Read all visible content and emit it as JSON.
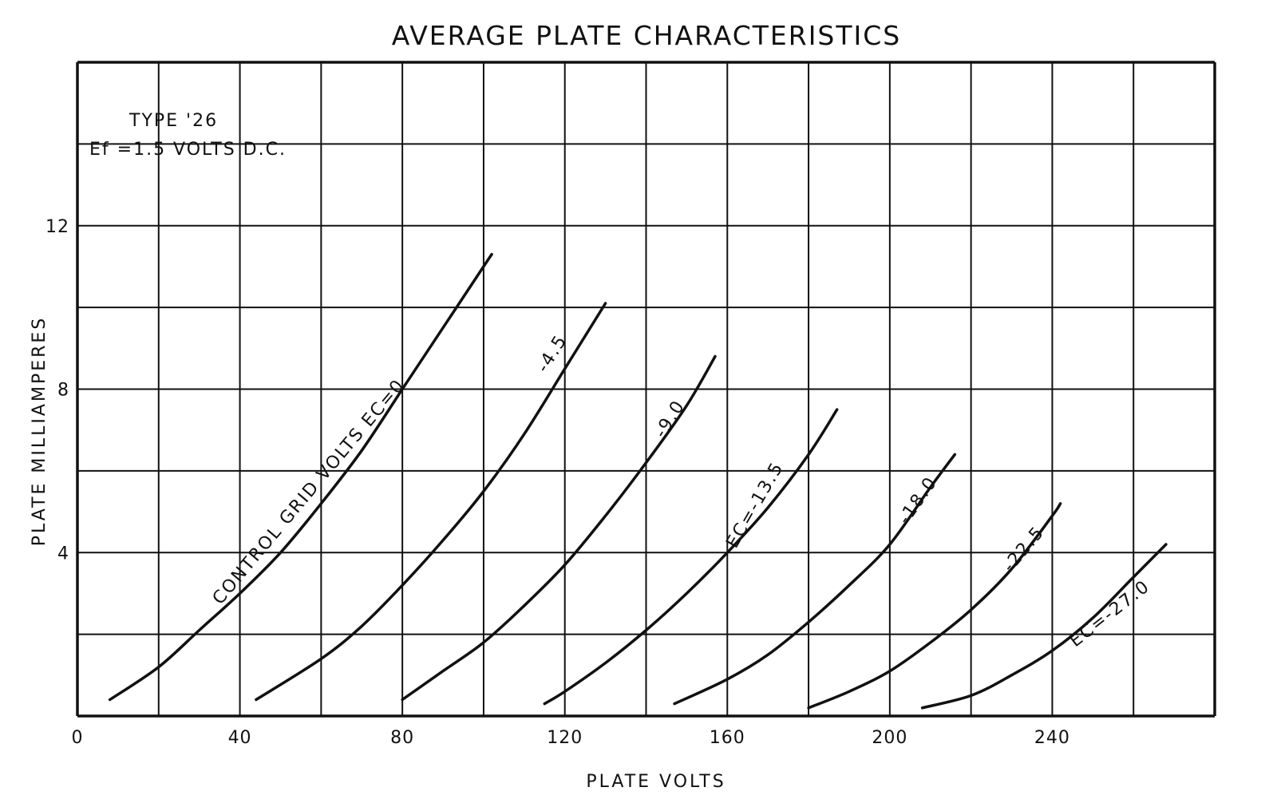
{
  "chart_data": {
    "type": "line",
    "title": "AVERAGE PLATE CHARACTERISTICS",
    "xlabel": "PLATE VOLTS",
    "ylabel": "PLATE MILLIAMPERES",
    "xlim": [
      0,
      280
    ],
    "ylim": [
      0,
      16
    ],
    "grid": true,
    "x_ticks": [
      {
        "value": 0,
        "label": "0"
      },
      {
        "value": 40,
        "label": "40"
      },
      {
        "value": 80,
        "label": "80"
      },
      {
        "value": 120,
        "label": "120"
      },
      {
        "value": 160,
        "label": "160"
      },
      {
        "value": 200,
        "label": "200"
      },
      {
        "value": 240,
        "label": "240"
      }
    ],
    "y_ticks": [
      {
        "value": 4,
        "label": "4"
      },
      {
        "value": 8,
        "label": "8"
      },
      {
        "value": 12,
        "label": "12"
      }
    ],
    "annotation_lines": [
      "TYPE '26",
      "Ef =1.5 VOLTS D.C."
    ],
    "series": [
      {
        "label": "CONTROL GRID VOLTS EC=0",
        "label_at": [
          58,
          5.4
        ],
        "label_angle": -50,
        "x": [
          8,
          20,
          30,
          40,
          50,
          60,
          70,
          80,
          90,
          100,
          102
        ],
        "y": [
          0.4,
          1.2,
          2.1,
          3.0,
          4.0,
          5.2,
          6.5,
          8.0,
          9.5,
          11.0,
          11.3
        ]
      },
      {
        "label": "-4.5",
        "label_at": [
          118,
          8.8
        ],
        "label_angle": -58,
        "x": [
          44,
          60,
          70,
          80,
          90,
          100,
          110,
          120,
          130
        ],
        "y": [
          0.4,
          1.4,
          2.2,
          3.2,
          4.3,
          5.5,
          6.9,
          8.5,
          10.1
        ]
      },
      {
        "label": "-9.0",
        "label_at": [
          147,
          7.2
        ],
        "label_angle": -58,
        "x": [
          80,
          90,
          100,
          110,
          120,
          130,
          140,
          150,
          157
        ],
        "y": [
          0.4,
          1.1,
          1.8,
          2.7,
          3.7,
          4.9,
          6.2,
          7.6,
          8.8
        ]
      },
      {
        "label": "EC=-13.5",
        "label_at": [
          168,
          5.1
        ],
        "label_angle": -60,
        "x": [
          115,
          120,
          130,
          140,
          150,
          160,
          170,
          180,
          187
        ],
        "y": [
          0.3,
          0.6,
          1.3,
          2.1,
          3.0,
          4.0,
          5.1,
          6.4,
          7.5
        ]
      },
      {
        "label": "-18.0",
        "label_at": [
          208,
          5.2
        ],
        "label_angle": -55,
        "x": [
          147,
          160,
          170,
          180,
          190,
          200,
          210,
          216
        ],
        "y": [
          0.3,
          0.9,
          1.5,
          2.3,
          3.2,
          4.2,
          5.6,
          6.4
        ]
      },
      {
        "label": "-22.5",
        "label_at": [
          234,
          4.0
        ],
        "label_angle": -50,
        "x": [
          180,
          190,
          200,
          210,
          220,
          230,
          240,
          242
        ],
        "y": [
          0.2,
          0.6,
          1.1,
          1.8,
          2.6,
          3.6,
          4.9,
          5.2
        ]
      },
      {
        "label": "EC=-27.0",
        "label_at": [
          255,
          2.4
        ],
        "label_angle": -38,
        "x": [
          208,
          220,
          230,
          240,
          250,
          260,
          268
        ],
        "y": [
          0.2,
          0.5,
          1.0,
          1.6,
          2.4,
          3.4,
          4.2
        ]
      }
    ],
    "colors": {
      "line": "#111111",
      "background": "#ffffff"
    }
  }
}
